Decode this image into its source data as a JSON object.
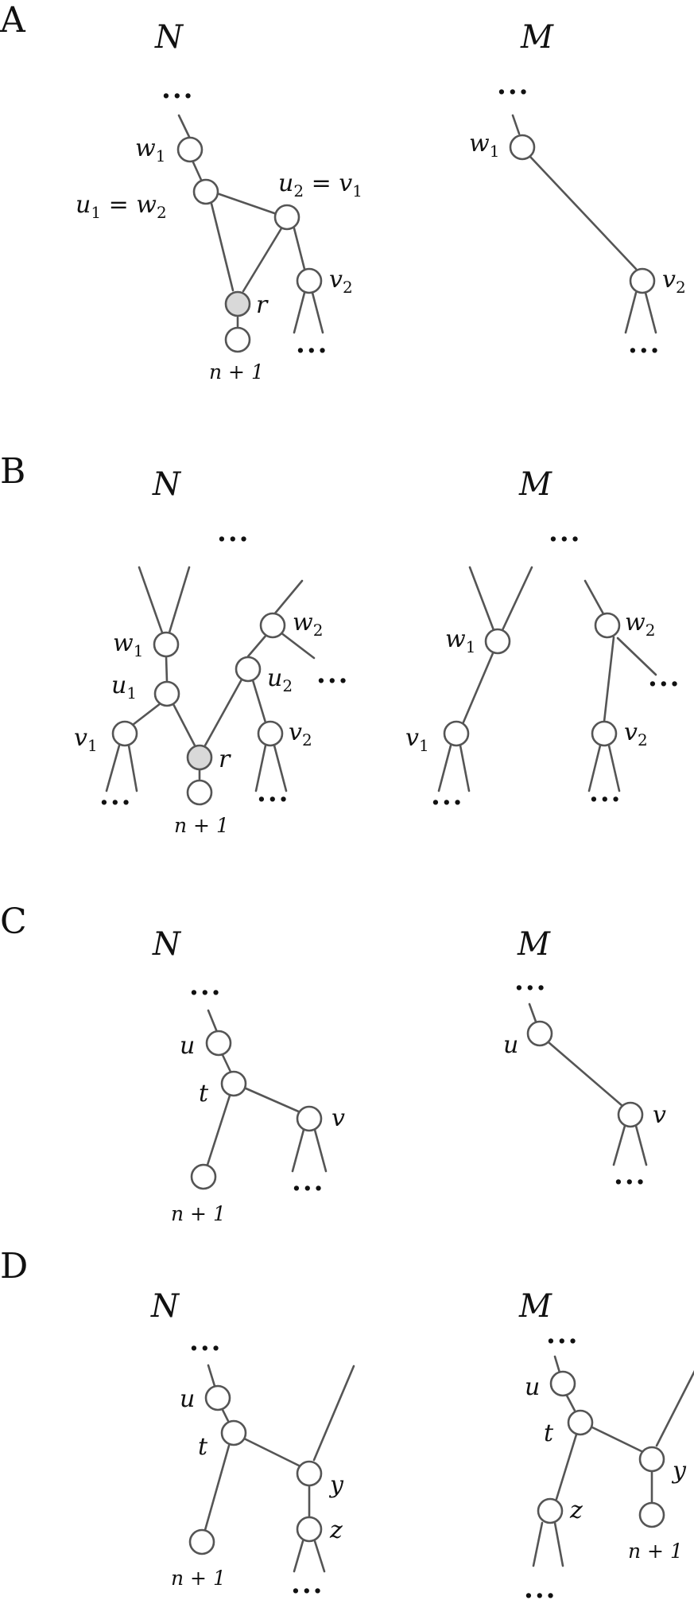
{
  "panels": {
    "A": {
      "letter": "A",
      "N": {
        "title": "N",
        "dots": "...",
        "w1": "w",
        "w1_sub": "1",
        "u1w2": {
          "u": "u",
          "u_sub": "1",
          "eq": " = ",
          "w": "w",
          "w_sub": "2"
        },
        "u2v1": {
          "u": "u",
          "u_sub": "2",
          "eq": " = ",
          "v": "v",
          "v_sub": "1"
        },
        "v2": "v",
        "v2_sub": "2",
        "r": "r",
        "leaf": "n + 1",
        "dots_v2": "..."
      },
      "M": {
        "title": "M",
        "dots": "...",
        "w1": "w",
        "w1_sub": "1",
        "v2": "v",
        "v2_sub": "2",
        "dots_v2": "..."
      }
    },
    "B": {
      "letter": "B",
      "N": {
        "title": "N",
        "dots_top": "...",
        "w1": "w",
        "w1_sub": "1",
        "w2": "w",
        "w2_sub": "2",
        "u1": "u",
        "u1_sub": "1",
        "u2": "u",
        "u2_sub": "2",
        "v1": "v",
        "v1_sub": "1",
        "v2": "v",
        "v2_sub": "2",
        "r": "r",
        "leaf": "n + 1",
        "dots_w2": "...",
        "dots_v1": "...",
        "dots_v2": "..."
      },
      "M": {
        "title": "M",
        "dots_top": "...",
        "w1": "w",
        "w1_sub": "1",
        "w2": "w",
        "w2_sub": "2",
        "v1": "v",
        "v1_sub": "1",
        "v2": "v",
        "v2_sub": "2",
        "dots_w2": "...",
        "dots_v1": "...",
        "dots_v2": "..."
      }
    },
    "C": {
      "letter": "C",
      "N": {
        "title": "N",
        "dots": "...",
        "u": "u",
        "t": "t",
        "v": "v",
        "leaf": "n + 1",
        "dots_v": "..."
      },
      "M": {
        "title": "M",
        "dots": "...",
        "u": "u",
        "v": "v",
        "dots_v": "..."
      }
    },
    "D": {
      "letter": "D",
      "N": {
        "title": "N",
        "dots": "...",
        "u": "u",
        "t": "t",
        "y": "y",
        "z": "z",
        "leaf": "n + 1",
        "dots_z": "..."
      },
      "M": {
        "title": "M",
        "dots": "...",
        "u": "u",
        "t": "t",
        "y": "y",
        "z": "z",
        "leaf": "n + 1",
        "dots_z": "..."
      }
    }
  }
}
